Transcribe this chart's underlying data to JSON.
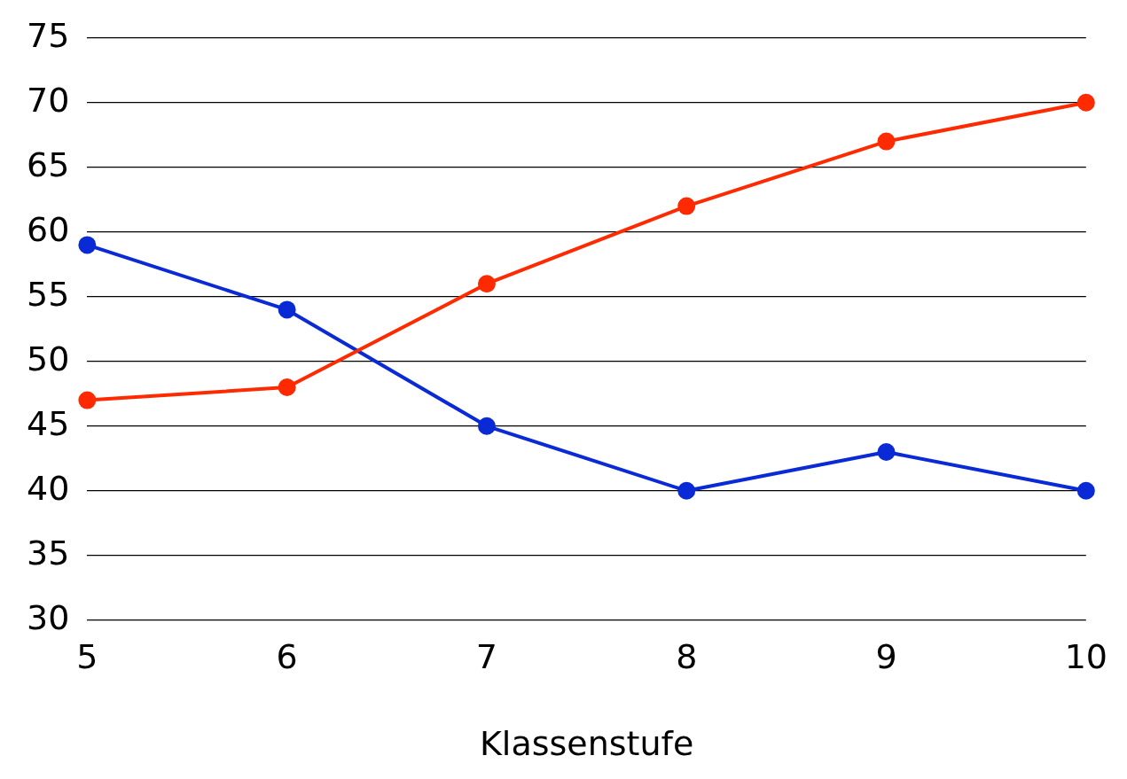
{
  "chart_data": {
    "type": "line",
    "xlabel": "Klassenstufe",
    "categories": [
      "5",
      "6",
      "7",
      "8",
      "9",
      "10"
    ],
    "series": [
      {
        "color": "#ff2a00",
        "values": [
          47,
          48,
          56,
          62,
          67,
          70
        ]
      },
      {
        "color": "#0a2ad6",
        "values": [
          59,
          54,
          45,
          40,
          43,
          40
        ]
      }
    ],
    "ylim": [
      30,
      75
    ],
    "yticks": [
      30,
      35,
      40,
      45,
      50,
      55,
      60,
      65,
      70,
      75
    ],
    "grid": "y",
    "legend": false,
    "marker": "circle",
    "line_style": "solid"
  }
}
